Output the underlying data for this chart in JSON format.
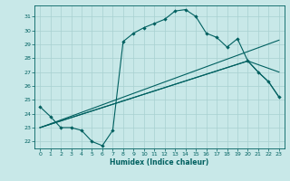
{
  "xlabel": "Humidex (Indice chaleur)",
  "ylabel": "",
  "bg_color": "#c8e8e8",
  "line_color": "#006060",
  "grid_color": "#a8d0d0",
  "xlim": [
    -0.5,
    23.5
  ],
  "ylim": [
    21.5,
    31.8
  ],
  "yticks": [
    22,
    23,
    24,
    25,
    26,
    27,
    28,
    29,
    30,
    31
  ],
  "xticks": [
    0,
    1,
    2,
    3,
    4,
    5,
    6,
    7,
    8,
    9,
    10,
    11,
    12,
    13,
    14,
    15,
    16,
    17,
    18,
    19,
    20,
    21,
    22,
    23
  ],
  "series1": [
    [
      0,
      24.5
    ],
    [
      1,
      23.8
    ],
    [
      2,
      23.0
    ],
    [
      3,
      23.0
    ],
    [
      4,
      22.8
    ],
    [
      5,
      22.0
    ],
    [
      6,
      21.7
    ],
    [
      7,
      22.8
    ],
    [
      8,
      29.2
    ],
    [
      9,
      29.8
    ],
    [
      10,
      30.2
    ],
    [
      11,
      30.5
    ],
    [
      12,
      30.8
    ],
    [
      13,
      31.4
    ],
    [
      14,
      31.5
    ],
    [
      15,
      31.0
    ],
    [
      16,
      29.8
    ],
    [
      17,
      29.5
    ],
    [
      18,
      28.8
    ],
    [
      19,
      29.4
    ],
    [
      20,
      27.8
    ],
    [
      21,
      27.0
    ],
    [
      22,
      26.3
    ],
    [
      23,
      25.2
    ]
  ],
  "series2": [
    [
      0,
      23.0
    ],
    [
      23,
      29.3
    ]
  ],
  "series3": [
    [
      0,
      23.0
    ],
    [
      20,
      27.8
    ],
    [
      23,
      27.0
    ]
  ],
  "series4": [
    [
      0,
      23.0
    ],
    [
      20,
      27.8
    ],
    [
      21,
      27.0
    ],
    [
      22,
      26.3
    ],
    [
      23,
      25.2
    ]
  ]
}
